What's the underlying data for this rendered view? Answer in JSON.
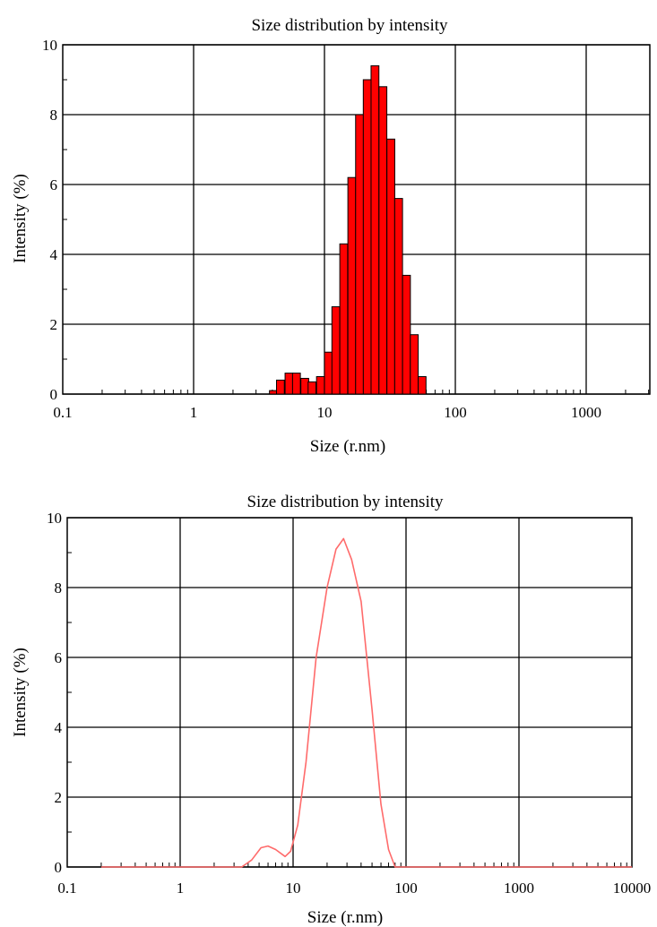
{
  "chart_data": [
    {
      "type": "bar",
      "title": "Size distribution by intensity",
      "xlabel": "Size (r.nm)",
      "ylabel": "Intensity (%)",
      "xscale": "log",
      "xlim": [
        0.1,
        5000
      ],
      "ylim": [
        0,
        10
      ],
      "grid": true,
      "x_tick_labels": [
        "0.1",
        "1",
        "10",
        "100",
        "1000"
      ],
      "y_tick_labels": [
        "0",
        "2",
        "4",
        "6",
        "8",
        "10"
      ],
      "colors": {
        "bar": "#ff0000",
        "edge": "#000000",
        "grid": "#000000"
      },
      "bins": [
        {
          "x": 3.8,
          "value": 0.1
        },
        {
          "x": 4.3,
          "value": 0.4
        },
        {
          "x": 5.0,
          "value": 0.6
        },
        {
          "x": 5.7,
          "value": 0.6
        },
        {
          "x": 6.6,
          "value": 0.45
        },
        {
          "x": 7.5,
          "value": 0.35
        },
        {
          "x": 8.7,
          "value": 0.5
        },
        {
          "x": 10.0,
          "value": 1.2
        },
        {
          "x": 11.4,
          "value": 2.5
        },
        {
          "x": 13.1,
          "value": 4.3
        },
        {
          "x": 15.1,
          "value": 6.2
        },
        {
          "x": 17.3,
          "value": 8.0
        },
        {
          "x": 19.8,
          "value": 9.0
        },
        {
          "x": 22.7,
          "value": 9.4
        },
        {
          "x": 26.1,
          "value": 8.8
        },
        {
          "x": 30.0,
          "value": 7.3
        },
        {
          "x": 34.4,
          "value": 5.6
        },
        {
          "x": 39.5,
          "value": 3.4
        },
        {
          "x": 45.3,
          "value": 1.7
        },
        {
          "x": 52.0,
          "value": 0.5
        }
      ],
      "bin_ratio": 1.148
    },
    {
      "type": "line",
      "title": "Size distribution by intensity",
      "xlabel": "Size (r.nm)",
      "ylabel": "Intensity (%)",
      "xscale": "log",
      "xlim": [
        0.1,
        10000
      ],
      "ylim": [
        0,
        10
      ],
      "grid": true,
      "x_tick_labels": [
        "0.1",
        "1",
        "10",
        "100",
        "1000",
        "10000"
      ],
      "y_tick_labels": [
        "0",
        "2",
        "4",
        "6",
        "8",
        "10"
      ],
      "colors": {
        "line": "#ff6b6b",
        "grid": "#000000"
      },
      "points": [
        {
          "x": 0.2,
          "y": 0
        },
        {
          "x": 1,
          "y": 0
        },
        {
          "x": 3.5,
          "y": 0
        },
        {
          "x": 4.3,
          "y": 0.2
        },
        {
          "x": 5.2,
          "y": 0.55
        },
        {
          "x": 6.0,
          "y": 0.6
        },
        {
          "x": 7.0,
          "y": 0.5
        },
        {
          "x": 8.5,
          "y": 0.3
        },
        {
          "x": 9.5,
          "y": 0.45
        },
        {
          "x": 11,
          "y": 1.2
        },
        {
          "x": 13,
          "y": 3.0
        },
        {
          "x": 16,
          "y": 6.0
        },
        {
          "x": 20,
          "y": 8.0
        },
        {
          "x": 24,
          "y": 9.1
        },
        {
          "x": 28,
          "y": 9.4
        },
        {
          "x": 33,
          "y": 8.8
        },
        {
          "x": 40,
          "y": 7.6
        },
        {
          "x": 50,
          "y": 4.5
        },
        {
          "x": 60,
          "y": 1.8
        },
        {
          "x": 70,
          "y": 0.5
        },
        {
          "x": 80,
          "y": 0
        },
        {
          "x": 200,
          "y": 0
        },
        {
          "x": 10000,
          "y": 0
        }
      ]
    }
  ]
}
